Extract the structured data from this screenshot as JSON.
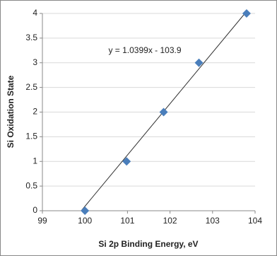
{
  "chart_data": {
    "type": "scatter",
    "x_label": "Si 2p Binding Energy, eV",
    "y_label": "Si Oxidation State",
    "series": [
      {
        "name": "Si oxidation state",
        "color": "#4a7ebb",
        "x": [
          100.0,
          100.98,
          101.85,
          102.68,
          103.8
        ],
        "values": [
          0,
          1,
          2,
          3,
          4
        ]
      }
    ],
    "trendline": {
      "label": "y = 1.0399x - 103.9",
      "slope": 1.0399,
      "intercept": -103.9
    },
    "xlim": [
      99,
      104
    ],
    "xticks": [
      99,
      100,
      101,
      102,
      103,
      104
    ],
    "ylim": [
      0,
      4
    ],
    "yticks": [
      0,
      0.5,
      1,
      1.5,
      2,
      2.5,
      3,
      3.5,
      4
    ],
    "grid": true
  }
}
